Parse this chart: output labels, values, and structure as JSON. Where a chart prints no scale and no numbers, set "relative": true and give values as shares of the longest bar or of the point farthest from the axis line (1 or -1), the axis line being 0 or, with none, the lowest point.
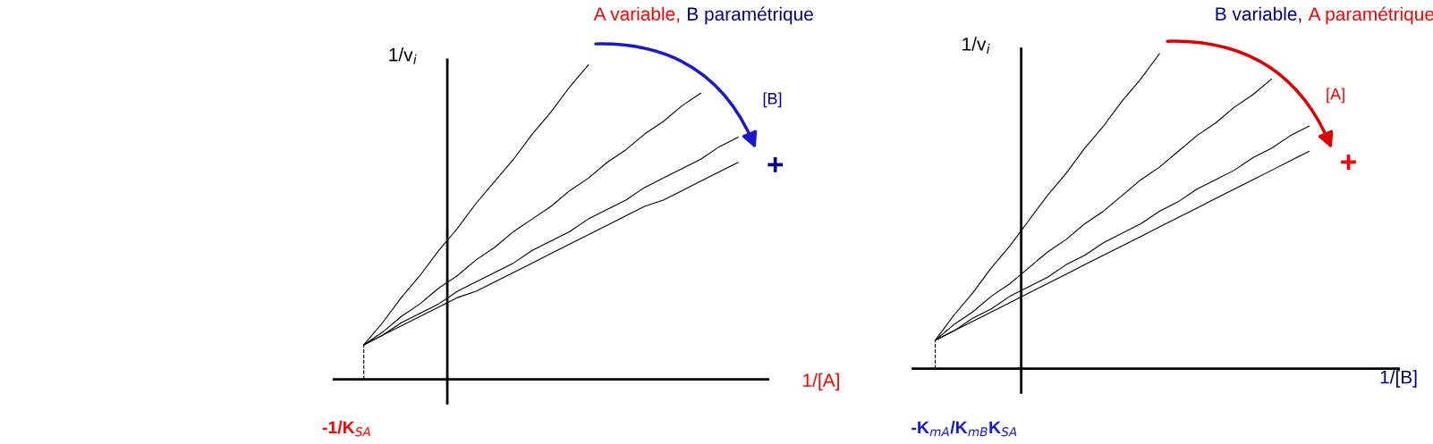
{
  "chart_data": [
    {
      "type": "line",
      "title": "A variable, B paramétrique",
      "xlabel": "1/[A]",
      "ylabel": "1/v$_{i}$",
      "relative": true,
      "marker": "none",
      "line_style": "solid",
      "categories": [
        null,
        null,
        null,
        null,
        null,
        null,
        null,
        null,
        null,
        null,
        null,
        null,
        null,
        null,
        null,
        null,
        null,
        null,
        null,
        null,
        null
      ],
      "series": [
        {
          "color": "#000000",
          "values": [
            0.11,
            0.18,
            0.26,
            0.33,
            0.41,
            0.48,
            0.56,
            0.63,
            0.7,
            0.78,
            0.85,
            0.93,
            1.0,
            null,
            null,
            null,
            null,
            null,
            null,
            null,
            null
          ]
        },
        {
          "color": "#000000",
          "values": [
            0.11,
            0.15,
            0.2,
            0.24,
            0.29,
            0.33,
            0.38,
            0.42,
            0.47,
            0.51,
            0.55,
            0.6,
            0.64,
            0.69,
            0.73,
            0.78,
            0.82,
            0.87,
            0.91,
            null,
            null
          ]
        },
        {
          "color": "#000000",
          "values": [
            0.11,
            0.14,
            0.18,
            0.21,
            0.24,
            0.28,
            0.31,
            0.34,
            0.37,
            0.41,
            0.44,
            0.47,
            0.51,
            0.54,
            0.57,
            0.61,
            0.64,
            0.67,
            0.7,
            0.74,
            0.77
          ]
        },
        {
          "color": "#000000",
          "values": [
            0.11,
            0.14,
            0.17,
            0.2,
            0.23,
            0.26,
            0.28,
            0.31,
            0.34,
            0.37,
            0.4,
            0.43,
            0.46,
            0.49,
            0.52,
            0.55,
            0.57,
            0.6,
            0.63,
            0.66,
            0.69
          ]
        }
      ],
      "annotations": [
        "[B]",
        "+",
        "-1/K$_{SA}$"
      ]
    },
    {
      "type": "line",
      "title": "B variable, A paramétrique",
      "xlabel": "1/[B]",
      "ylabel": "1/v$_{i}$",
      "relative": true,
      "marker": "none",
      "line_style": "solid",
      "categories": [
        null,
        null,
        null,
        null,
        null,
        null,
        null,
        null,
        null,
        null,
        null,
        null,
        null,
        null,
        null,
        null,
        null,
        null,
        null,
        null,
        null
      ],
      "series": [
        {
          "color": "#000000",
          "values": [
            0.09,
            0.17,
            0.24,
            0.32,
            0.39,
            0.47,
            0.55,
            0.62,
            0.7,
            0.77,
            0.85,
            0.92,
            1.0,
            null,
            null,
            null,
            null,
            null,
            null,
            null,
            null
          ]
        },
        {
          "color": "#000000",
          "values": [
            0.09,
            0.14,
            0.18,
            0.23,
            0.27,
            0.32,
            0.37,
            0.41,
            0.46,
            0.5,
            0.55,
            0.6,
            0.64,
            0.69,
            0.74,
            0.78,
            0.83,
            0.87,
            0.92,
            null,
            null
          ]
        },
        {
          "color": "#000000",
          "values": [
            0.09,
            0.12,
            0.16,
            0.19,
            0.23,
            0.26,
            0.29,
            0.33,
            0.36,
            0.4,
            0.43,
            0.46,
            0.5,
            0.53,
            0.57,
            0.6,
            0.63,
            0.67,
            0.7,
            0.74,
            0.77
          ]
        },
        {
          "color": "#000000",
          "values": [
            0.09,
            0.12,
            0.15,
            0.18,
            0.21,
            0.24,
            0.27,
            0.3,
            0.33,
            0.36,
            0.39,
            0.42,
            0.45,
            0.48,
            0.51,
            0.54,
            0.57,
            0.6,
            0.63,
            0.66,
            0.69
          ]
        }
      ],
      "annotations": [
        "[A]",
        "+",
        "-K$_{mA}$/K$_{mB}$K$_{SA}$"
      ]
    }
  ]
}
